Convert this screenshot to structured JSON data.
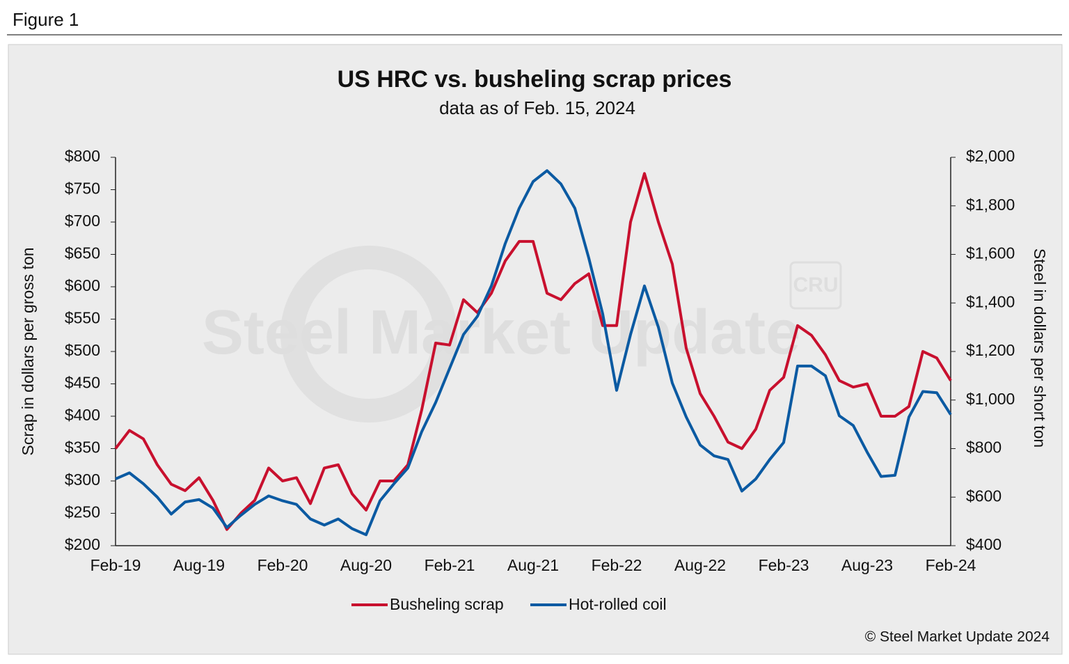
{
  "figure_label": "Figure 1",
  "watermark": {
    "brand": "Steel Market Update",
    "logo": "CRU"
  },
  "copyright": "© Steel Market Update 2024",
  "chart_data": {
    "type": "line",
    "title": "US HRC vs. busheling scrap prices",
    "subtitle": "data as of Feb. 15, 2024",
    "ylabel": "Scrap in dollars per gross ton",
    "y2label": "Steel in dollars per short ton",
    "categories": [
      "Feb-19",
      null,
      null,
      null,
      null,
      null,
      "Aug-19",
      null,
      null,
      null,
      null,
      null,
      "Feb-20",
      null,
      null,
      null,
      null,
      null,
      "Aug-20",
      null,
      null,
      null,
      null,
      null,
      "Feb-21",
      null,
      null,
      null,
      null,
      null,
      "Aug-21",
      null,
      null,
      null,
      null,
      null,
      "Feb-22",
      null,
      null,
      null,
      null,
      null,
      "Aug-22",
      null,
      null,
      null,
      null,
      null,
      "Feb-23",
      null,
      null,
      null,
      null,
      null,
      "Aug-23",
      null,
      null,
      null,
      null,
      null,
      "Feb-24"
    ],
    "ylim": [
      200,
      800
    ],
    "yticks": [
      {
        "value": 200,
        "label": "$200"
      },
      {
        "value": 250,
        "label": "$250"
      },
      {
        "value": 300,
        "label": "$300"
      },
      {
        "value": 350,
        "label": "$350"
      },
      {
        "value": 400,
        "label": "$400"
      },
      {
        "value": 450,
        "label": "$450"
      },
      {
        "value": 500,
        "label": "$500"
      },
      {
        "value": 550,
        "label": "$550"
      },
      {
        "value": 600,
        "label": "$600"
      },
      {
        "value": 650,
        "label": "$650"
      },
      {
        "value": 700,
        "label": "$700"
      },
      {
        "value": 750,
        "label": "$750"
      },
      {
        "value": 800,
        "label": "$800"
      }
    ],
    "y2lim": [
      400,
      2000
    ],
    "y2ticks": [
      {
        "value": 400,
        "label": "$400"
      },
      {
        "value": 600,
        "label": "$600"
      },
      {
        "value": 800,
        "label": "$800"
      },
      {
        "value": 1000,
        "label": "$1,000"
      },
      {
        "value": 1200,
        "label": "$1,200"
      },
      {
        "value": 1400,
        "label": "$1,400"
      },
      {
        "value": 1600,
        "label": "$1,600"
      },
      {
        "value": 1800,
        "label": "$1,800"
      },
      {
        "value": 2000,
        "label": "$2,000"
      }
    ],
    "legend": "bottom",
    "series": [
      {
        "name": "Busheling scrap",
        "color": "#c8102e",
        "axis": "y",
        "values": [
          350,
          378,
          365,
          325,
          295,
          285,
          305,
          270,
          225,
          250,
          270,
          320,
          300,
          305,
          265,
          320,
          325,
          280,
          255,
          300,
          300,
          325,
          410,
          513,
          510,
          580,
          560,
          590,
          640,
          670,
          670,
          590,
          580,
          605,
          620,
          540,
          540,
          700,
          775,
          700,
          635,
          505,
          435,
          400,
          360,
          350,
          380,
          440,
          460,
          540,
          525,
          495,
          455,
          445,
          450,
          400,
          400,
          415,
          500,
          490,
          455
        ]
      },
      {
        "name": "Hot-rolled coil",
        "color": "#0b5aa2",
        "axis": "y2",
        "values": [
          675,
          700,
          655,
          600,
          530,
          580,
          590,
          555,
          475,
          525,
          570,
          605,
          585,
          570,
          510,
          485,
          510,
          470,
          445,
          585,
          655,
          720,
          870,
          990,
          1130,
          1270,
          1345,
          1470,
          1645,
          1790,
          1900,
          1945,
          1890,
          1790,
          1585,
          1355,
          1040,
          1270,
          1470,
          1300,
          1070,
          930,
          815,
          770,
          755,
          625,
          675,
          755,
          825,
          1140,
          1140,
          1100,
          935,
          895,
          785,
          685,
          690,
          930,
          1035,
          1030,
          940
        ]
      }
    ]
  }
}
